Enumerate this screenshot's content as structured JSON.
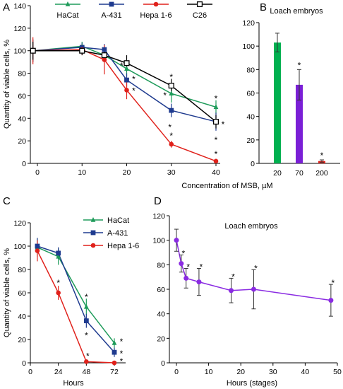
{
  "panels": {
    "A": {
      "letter": "A"
    },
    "B": {
      "letter": "B"
    },
    "C": {
      "letter": "C"
    },
    "D": {
      "letter": "D"
    }
  },
  "colors": {
    "HaCat": "#1e9b5a",
    "A-431": "#1f3b8f",
    "Hepa 1-6": "#e0211b",
    "C26": "#000000",
    "bar_green": "#00b050",
    "bar_purple": "#7a1fd6",
    "bar_red": "#e0211b",
    "loach_line": "#8a2be2"
  },
  "chart_data": [
    {
      "panel": "A",
      "type": "line",
      "xlabel": "Concentration of MSB, µM",
      "ylabel": "Quantity of viable cells, %",
      "xlim": [
        -1,
        42
      ],
      "ylim": [
        0,
        140
      ],
      "xticks": [
        0,
        10,
        20,
        30,
        40
      ],
      "yticks": [
        0,
        20,
        40,
        60,
        80,
        100,
        120,
        140
      ],
      "legend_position": "top",
      "series": [
        {
          "name": "HaCat",
          "marker": "triangle",
          "x": [
            -1,
            10,
            15,
            20,
            30,
            40
          ],
          "y": [
            100,
            104,
            96,
            84,
            62,
            50
          ],
          "err": [
            10,
            4,
            5,
            7,
            8,
            6
          ],
          "sig": [
            false,
            false,
            false,
            true,
            true,
            true
          ]
        },
        {
          "name": "A-431",
          "marker": "square",
          "x": [
            -1,
            10,
            15,
            20,
            30,
            40
          ],
          "y": [
            100,
            103,
            101,
            74,
            47,
            37
          ],
          "err": [
            10,
            4,
            5,
            6,
            6,
            8
          ],
          "sig": [
            false,
            false,
            false,
            true,
            true,
            true
          ]
        },
        {
          "name": "Hepa 1-6",
          "marker": "circle",
          "x": [
            -1,
            10,
            15,
            20,
            30,
            40
          ],
          "y": [
            100,
            101,
            92,
            65,
            17,
            2
          ],
          "err": [
            12,
            5,
            13,
            8,
            3,
            1
          ],
          "sig": [
            false,
            false,
            false,
            true,
            true,
            true
          ]
        },
        {
          "name": "C26",
          "marker": "square-open",
          "x": [
            -1,
            10,
            15,
            20,
            30,
            40
          ],
          "y": [
            100,
            100,
            96,
            89,
            69,
            37
          ],
          "err": [
            8,
            4,
            6,
            7,
            6,
            6
          ],
          "sig": [
            false,
            false,
            false,
            false,
            true,
            true
          ]
        }
      ],
      "sig_label": "*"
    },
    {
      "panel": "B",
      "type": "bar",
      "title": "Loach embryos",
      "categories": [
        "20",
        "70",
        "200"
      ],
      "values": [
        103,
        67,
        2
      ],
      "err": [
        8,
        13,
        1
      ],
      "sig": [
        false,
        true,
        true
      ],
      "ylim": [
        0,
        120
      ],
      "yticks": [
        0,
        20,
        40,
        60,
        80,
        100,
        120
      ],
      "sig_label": "*"
    },
    {
      "panel": "C",
      "type": "line",
      "xlabel": "Hours",
      "ylabel": "Quantity of viable cells, %",
      "xlim": [
        0,
        80
      ],
      "ylim": [
        0,
        120
      ],
      "xticks": [
        0,
        24,
        48,
        72
      ],
      "yticks": [
        0,
        20,
        40,
        60,
        80,
        100,
        120
      ],
      "legend_position": "top-right",
      "series": [
        {
          "name": "HaCat",
          "marker": "triangle",
          "x": [
            6,
            24,
            48,
            72
          ],
          "y": [
            99,
            91,
            48,
            17
          ],
          "err": [
            8,
            7,
            7,
            4
          ],
          "sig": [
            false,
            false,
            true,
            true
          ]
        },
        {
          "name": "A-431",
          "marker": "square",
          "x": [
            6,
            24,
            48,
            72
          ],
          "y": [
            100,
            94,
            36,
            9
          ],
          "err": [
            7,
            5,
            6,
            4
          ],
          "sig": [
            false,
            false,
            true,
            true
          ]
        },
        {
          "name": "Hepa 1-6",
          "marker": "circle",
          "x": [
            6,
            24,
            48,
            72
          ],
          "y": [
            96,
            60,
            1,
            0
          ],
          "err": [
            9,
            6,
            1,
            1
          ],
          "sig": [
            false,
            true,
            true,
            true
          ]
        }
      ],
      "sig_label": "*"
    },
    {
      "panel": "D",
      "type": "line",
      "title": "Loach embryos",
      "xlabel": "Hours (stages)",
      "ylim": [
        0,
        120
      ],
      "xlim": [
        -2,
        50
      ],
      "xticks": [
        0,
        10,
        20,
        30,
        40,
        50
      ],
      "yticks": [
        0,
        20,
        40,
        60,
        80,
        100,
        120
      ],
      "series": [
        {
          "x": [
            0,
            1.5,
            3,
            7,
            17,
            24,
            48
          ],
          "y": [
            100,
            81,
            69,
            66,
            59,
            60,
            51
          ],
          "err": [
            9,
            7,
            8,
            11,
            10,
            16,
            13
          ],
          "sig": [
            false,
            true,
            true,
            true,
            true,
            true,
            true
          ]
        }
      ],
      "sig_label": "*"
    }
  ]
}
